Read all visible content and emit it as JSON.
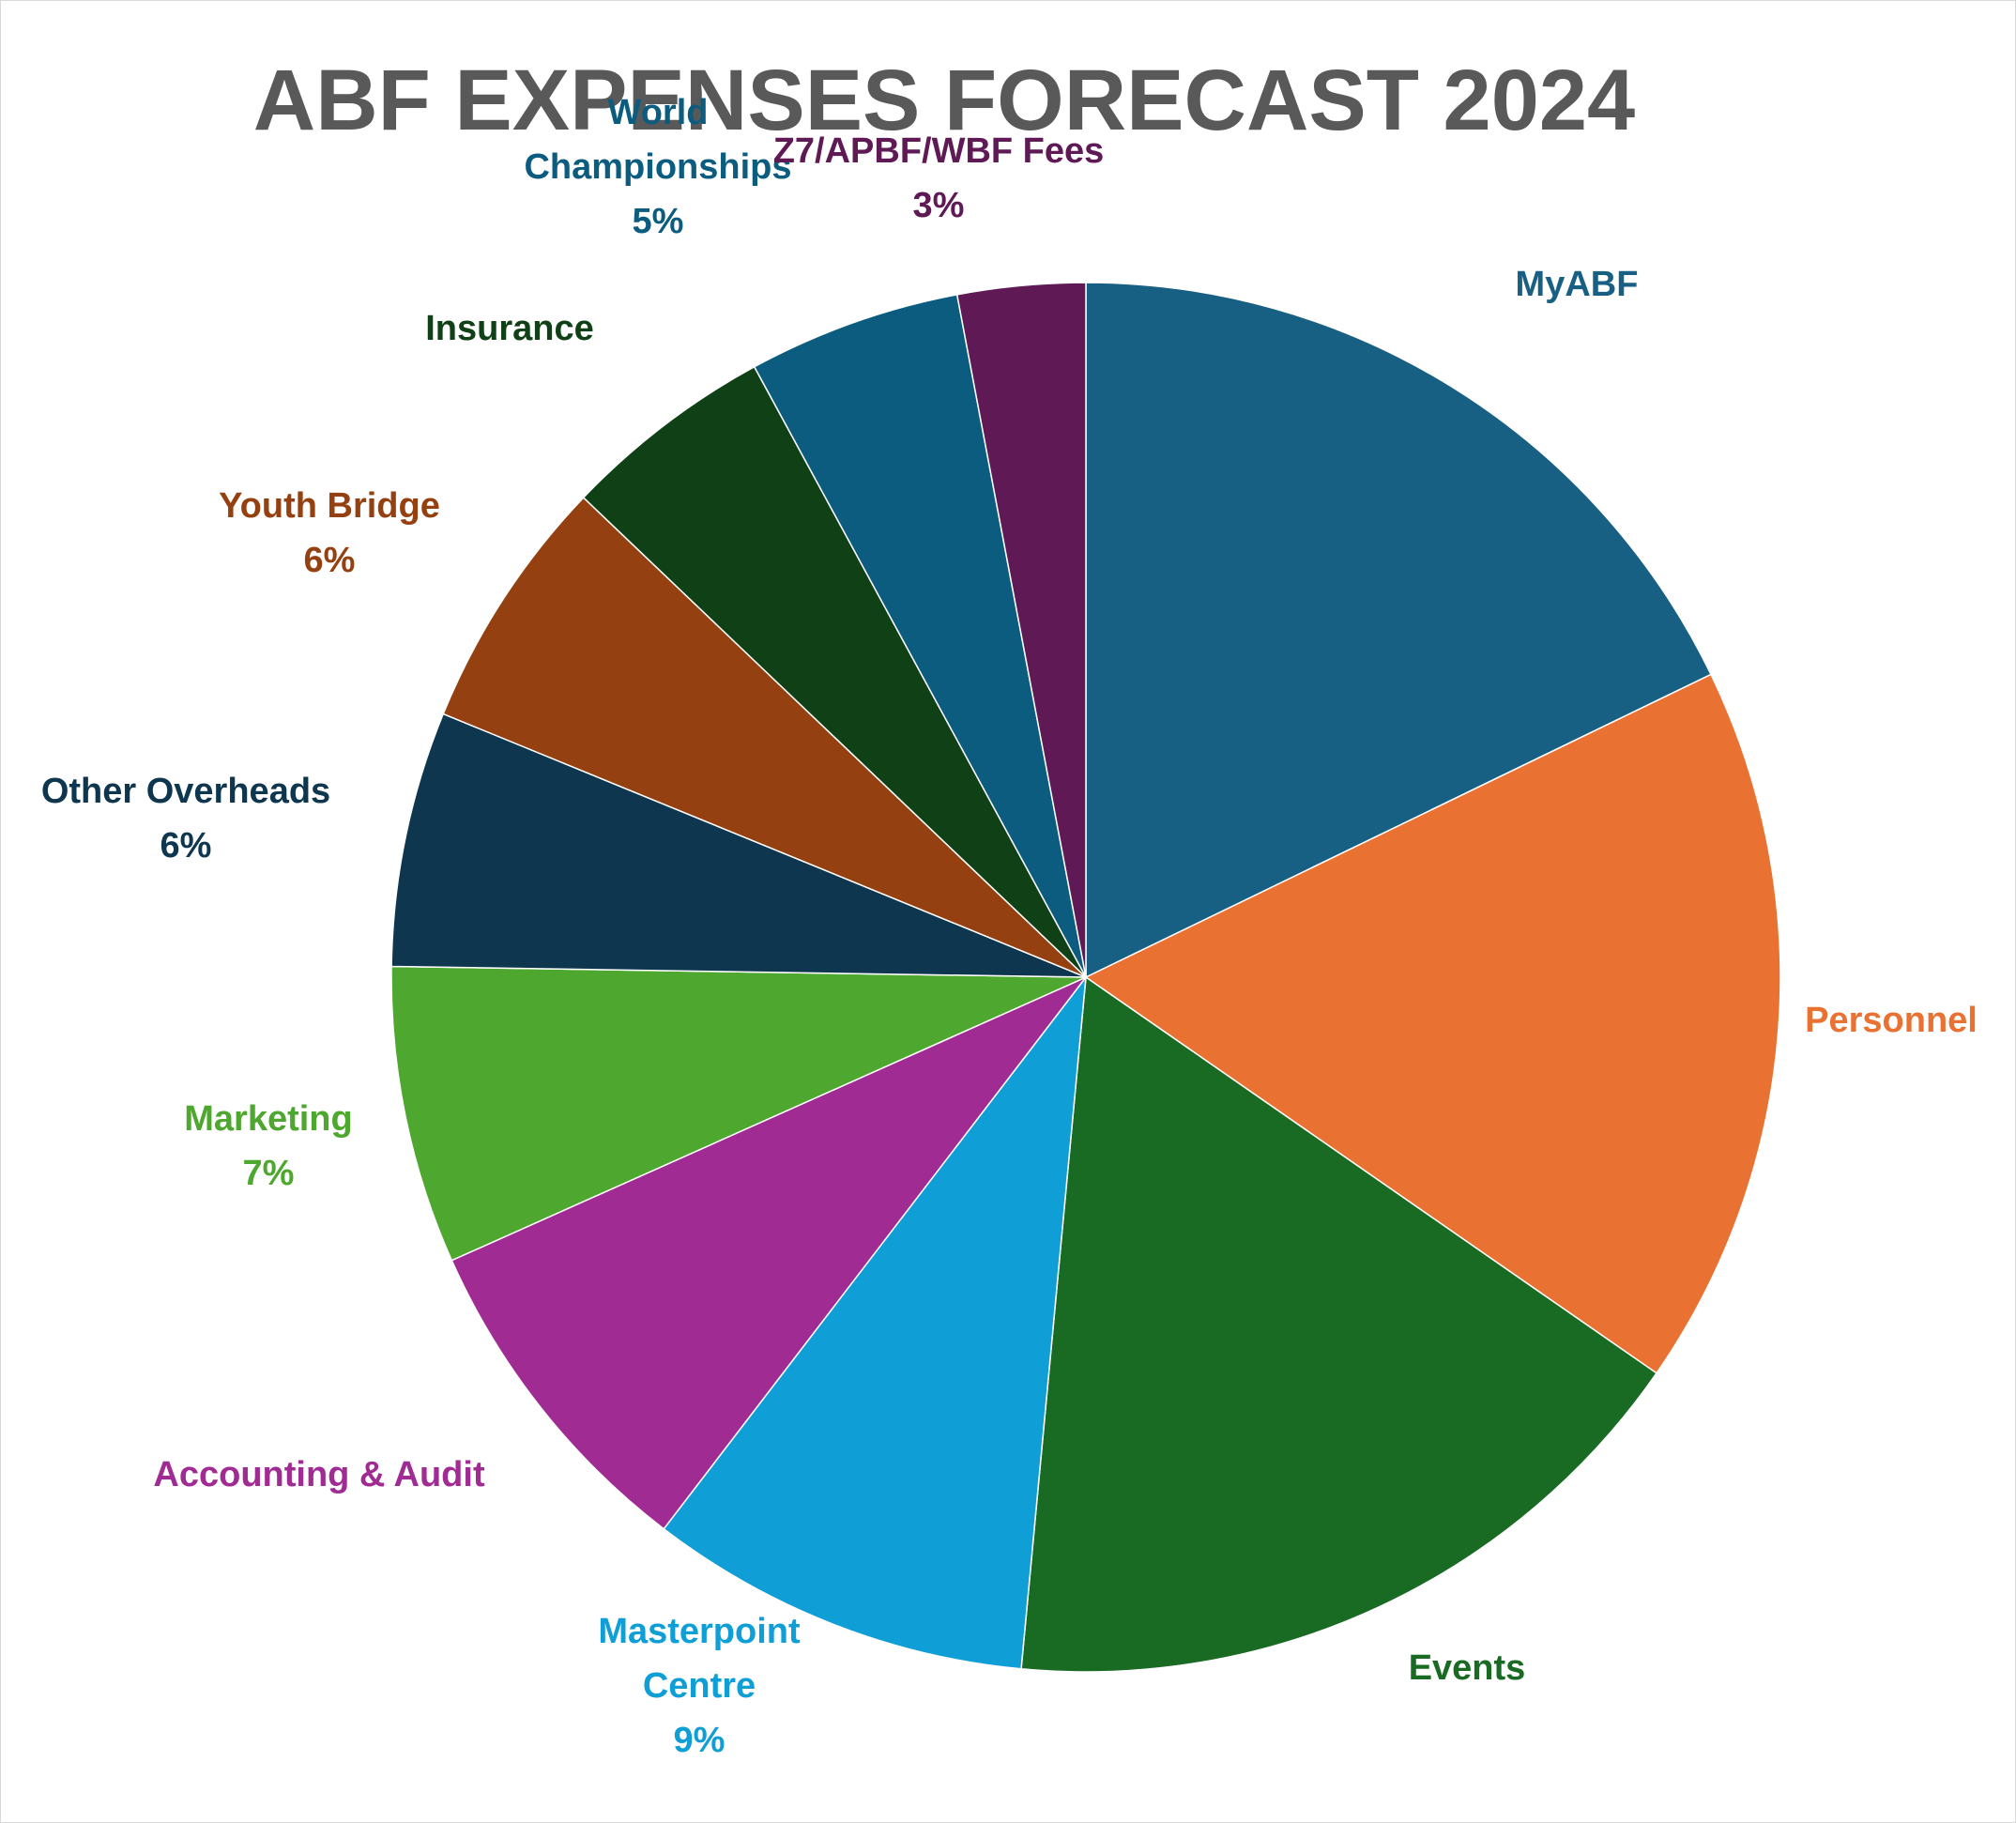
{
  "chart_data": {
    "type": "pie",
    "title": "ABF EXPENSES FORECAST 2024",
    "slices": [
      {
        "name": "MyABF",
        "value": 18,
        "pct_label": "",
        "color": "#185F84"
      },
      {
        "name": "Personnel",
        "value": 17,
        "pct_label": "",
        "color": "#E97132"
      },
      {
        "name": "Events",
        "value": 17,
        "pct_label": "",
        "color": "#196B24"
      },
      {
        "name": "Masterpoint Centre",
        "value": 9,
        "pct_label": "9%",
        "color": "#0F9ED5"
      },
      {
        "name": "Accounting & Audit",
        "value": 8,
        "pct_label": "",
        "color": "#A02B93"
      },
      {
        "name": "Marketing",
        "value": 7,
        "pct_label": "7%",
        "color": "#4EA72E"
      },
      {
        "name": "Other Overheads",
        "value": 6,
        "pct_label": "6%",
        "color": "#0E374F"
      },
      {
        "name": "Youth Bridge",
        "value": 6,
        "pct_label": "6%",
        "color": "#954010"
      },
      {
        "name": "Insurance",
        "value": 5,
        "pct_label": "",
        "color": "#0F4016"
      },
      {
        "name": "World Championships",
        "value": 5,
        "pct_label": "5%",
        "color": "#0B5C7F"
      },
      {
        "name": "Z7/APBF/WBF Fees",
        "value": 3,
        "pct_label": "3%",
        "color": "#5F1A56"
      }
    ],
    "legend": "none",
    "title_color": "#595959"
  }
}
